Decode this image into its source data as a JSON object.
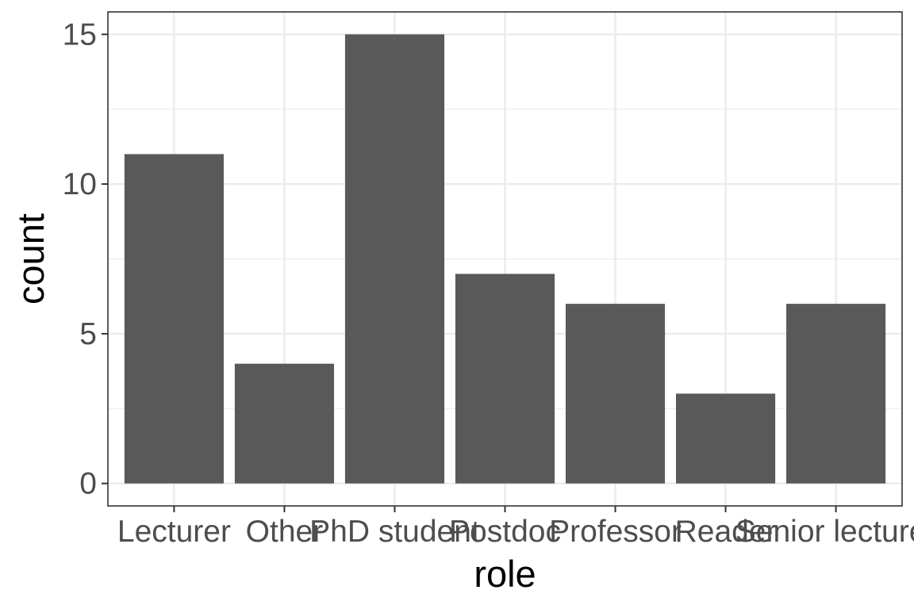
{
  "chart_data": {
    "type": "bar",
    "categories": [
      "Lecturer",
      "Other",
      "PhD student",
      "Postdoc",
      "Professor",
      "Reader",
      "Senior lecturer"
    ],
    "values": [
      11,
      4,
      15,
      7,
      6,
      3,
      6
    ],
    "xlabel": "role",
    "ylabel": "count",
    "ylim": [
      -0.75,
      15.75
    ],
    "yticks": [
      0,
      5,
      10,
      15
    ],
    "grid": true,
    "bar_color": "#595959",
    "grid_color": "#ebebeb",
    "panel_border_color": "#333333"
  }
}
